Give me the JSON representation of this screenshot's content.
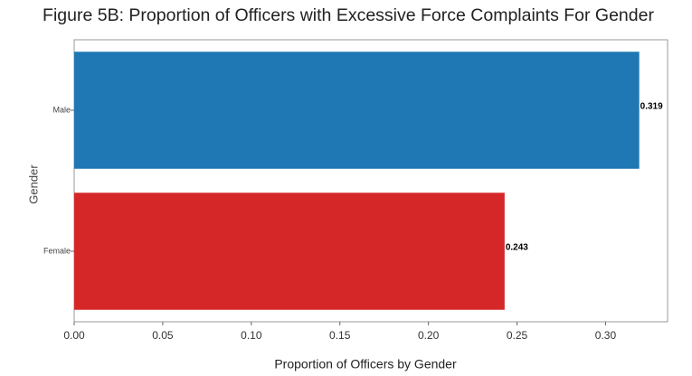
{
  "chart_data": {
    "type": "barh",
    "title": "Figure 5B: Proportion of Officers with Excessive Force Complaints For Gender",
    "xlabel": "Proportion of Officers by Gender",
    "ylabel": "Gender",
    "categories": [
      "Male",
      "Female"
    ],
    "values": [
      0.319,
      0.243
    ],
    "colors": [
      "#1f77b4",
      "#d62728"
    ],
    "xlim": [
      0,
      0.335
    ],
    "xticks": [
      {
        "value": 0,
        "label": "0.00"
      },
      {
        "value": 0.05,
        "label": "0.05"
      },
      {
        "value": 0.1,
        "label": "0.10"
      },
      {
        "value": 0.15,
        "label": "0.15"
      },
      {
        "value": 0.2,
        "label": "0.20"
      },
      {
        "value": 0.25,
        "label": "0.25"
      },
      {
        "value": 0.3,
        "label": "0.30"
      }
    ],
    "grid": false
  }
}
